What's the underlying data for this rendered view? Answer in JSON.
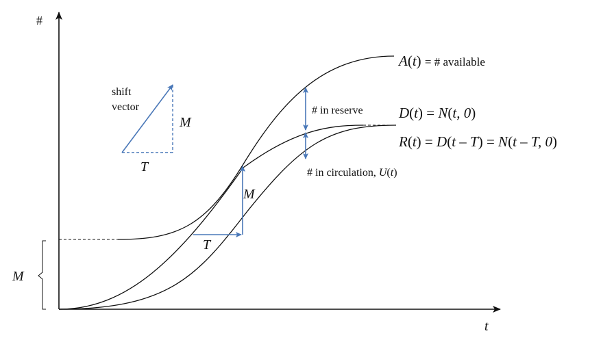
{
  "axes": {
    "y_label": "#",
    "x_label": "t"
  },
  "curves": {
    "available": {
      "name": "A",
      "arg": "t",
      "rest": "= # available"
    },
    "demand": {
      "name": "D",
      "arg": "t",
      "eq": "= ",
      "rhs_name": "N",
      "rhs_args": "t, 0"
    },
    "returns": {
      "name": "R",
      "arg": "t",
      "eq": "= ",
      "mid_name": "D",
      "mid_arg": "t – T",
      "eq2": " = ",
      "rhs_name": "N",
      "rhs_args": "t – T, 0"
    }
  },
  "annotations": {
    "in_reserve": "# in reserve",
    "in_circulation_text": "# in circulation, ",
    "in_circulation_var": "U",
    "in_circulation_arg": "t"
  },
  "shift_vector": {
    "line1": "shift",
    "line2": "vector",
    "vertical_label": "M",
    "horizontal_label": "T"
  },
  "shift_on_curve": {
    "vertical_label": "M",
    "horizontal_label": "T"
  },
  "offset": {
    "label": "M"
  },
  "colors": {
    "ink": "#111111",
    "accent": "#4a78b8"
  }
}
